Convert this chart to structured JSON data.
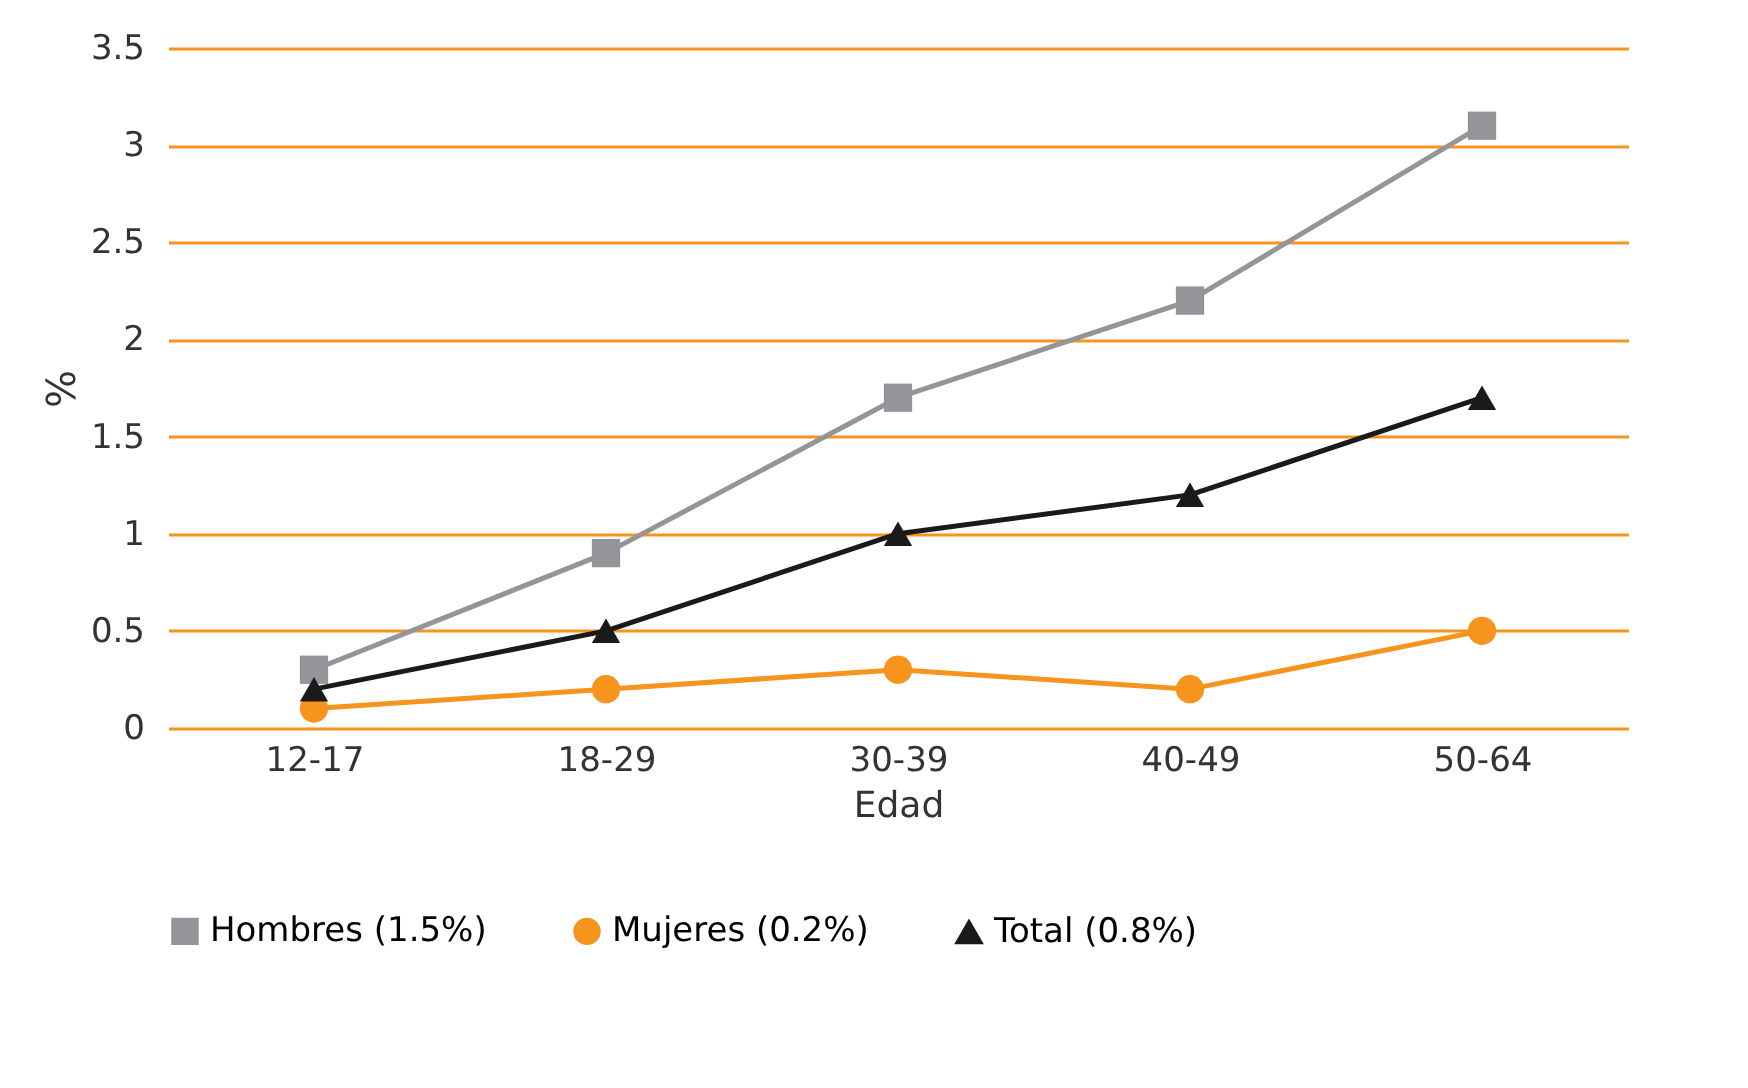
{
  "chart_data": {
    "type": "line",
    "xlabel": "Edad",
    "ylabel": "%",
    "categories": [
      "12-17",
      "18-29",
      "30-39",
      "40-49",
      "50-64"
    ],
    "series": [
      {
        "name": "Hombres (1.5%)",
        "color": "#939598",
        "marker": "square",
        "values": [
          0.3,
          0.9,
          1.7,
          2.2,
          3.1
        ]
      },
      {
        "name": "Mujeres (0.2%)",
        "color": "#f7941d",
        "marker": "circle",
        "values": [
          0.1,
          0.2,
          0.3,
          0.2,
          0.5
        ]
      },
      {
        "name": "Total (0.8%)",
        "color": "#1a1a1a",
        "marker": "triangle",
        "values": [
          0.2,
          0.5,
          1.0,
          1.2,
          1.7
        ]
      }
    ],
    "ylim": [
      0,
      3.5
    ],
    "yticks": [
      0,
      0.5,
      1,
      1.5,
      2,
      2.5,
      3,
      3.5
    ],
    "grid": "y",
    "legend": "bottom"
  }
}
